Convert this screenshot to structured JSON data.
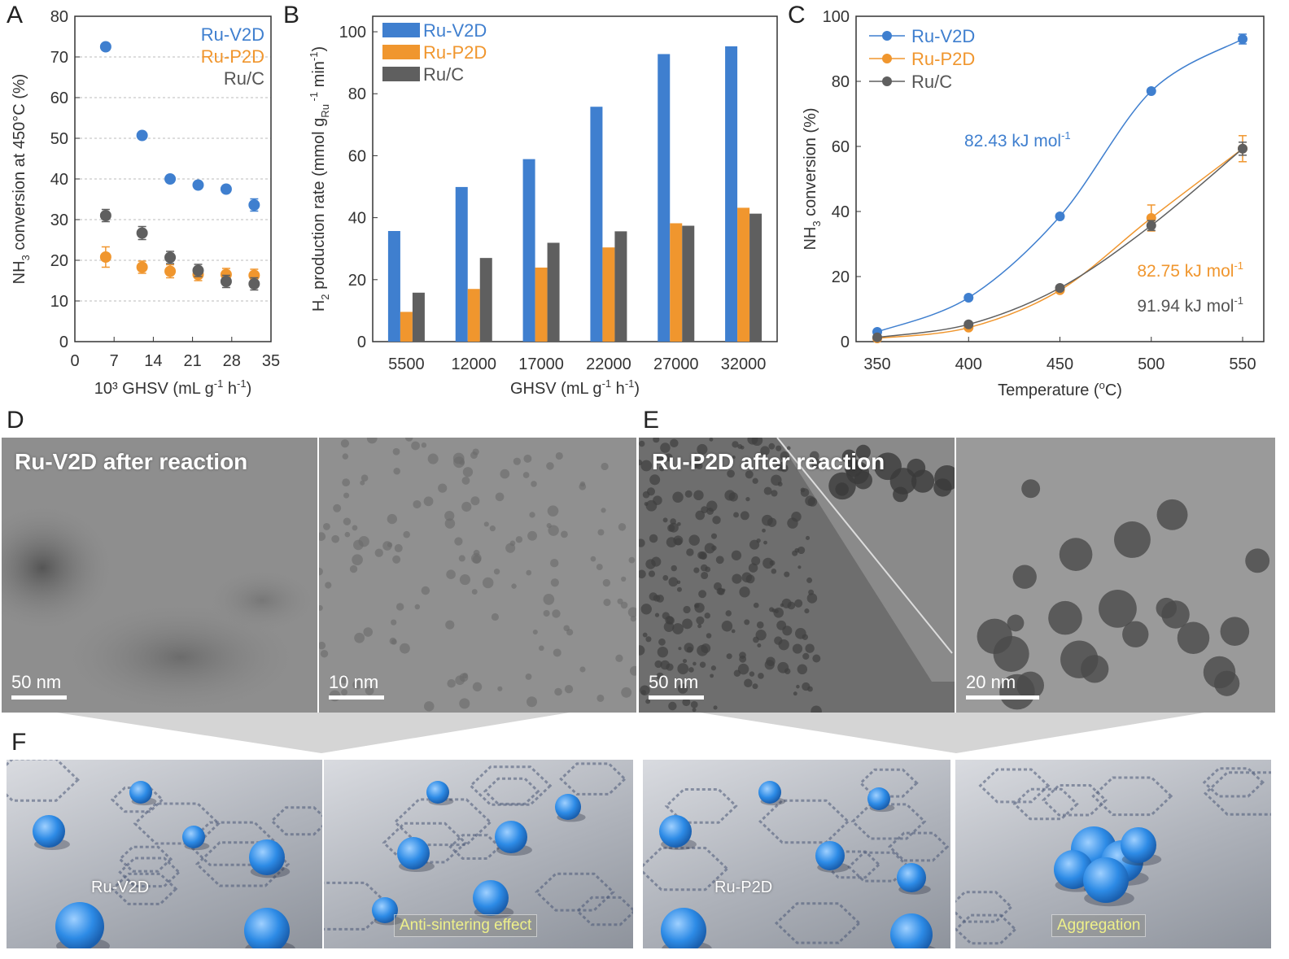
{
  "panels": {
    "A": "A",
    "B": "B",
    "C": "C",
    "D": "D",
    "E": "E",
    "F": "F"
  },
  "colors": {
    "ruv2d": "#3f7fcf",
    "rup2d": "#f0962e",
    "ruc": "#5f5f5f"
  },
  "chart_data": [
    {
      "type": "scatter",
      "ylabel_main": "NH",
      "ylabel_sub": "3",
      "ylabel_rest": " conversion at 450°C (%)",
      "xlabel_main": "10³ GHSV (mL g",
      "xlabel_sup1": "-1",
      "xlabel_mid": " h",
      "xlabel_sup2": "-1",
      "xlabel_end": ")",
      "xlim": [
        0,
        35
      ],
      "ylim": [
        0,
        80
      ],
      "xticks": [
        "0",
        "7",
        "14",
        "21",
        "28",
        "35"
      ],
      "yticks": [
        "0",
        "10",
        "20",
        "30",
        "40",
        "50",
        "60",
        "70",
        "80"
      ],
      "series": [
        {
          "name": "Ru-V2D",
          "x": [
            5.5,
            12,
            17,
            22,
            27,
            32
          ],
          "y": [
            72.5,
            50.7,
            40,
            38.5,
            37.5,
            33.6
          ],
          "err": [
            0,
            0,
            0,
            0,
            0,
            1.5
          ]
        },
        {
          "name": "Ru-P2D",
          "x": [
            5.5,
            12,
            17,
            22,
            27,
            32
          ],
          "y": [
            20.8,
            18.3,
            17.3,
            16.5,
            16.5,
            16.3
          ],
          "err": [
            2.5,
            1.5,
            1.6,
            1.5,
            1.5,
            1.5
          ]
        },
        {
          "name": "Ru/C",
          "x": [
            5.5,
            12,
            17,
            22,
            27,
            32
          ],
          "y": [
            31,
            26.7,
            20.7,
            17.5,
            14.8,
            14.2
          ],
          "err": [
            1.5,
            1.6,
            1.5,
            1.5,
            1.5,
            1.5
          ]
        }
      ]
    },
    {
      "type": "bar",
      "ylabel_main": "H",
      "ylabel_sub": "2",
      "ylabel_rest": " production rate (mmol g",
      "ylabel_sub2": "Ru",
      "ylabel_sup": " -1",
      "ylabel_end": " min",
      "ylabel_sup2": "-1",
      "ylabel_close": ")",
      "xlabel_main": "GHSV (mL g",
      "xlabel_sup1": "-1",
      "xlabel_mid": " h",
      "xlabel_sup2": "-1",
      "xlabel_end": ")",
      "ylim": [
        0,
        105
      ],
      "yticks": [
        "0",
        "20",
        "40",
        "60",
        "80",
        "100"
      ],
      "categories": [
        "5500",
        "12000",
        "17000",
        "22000",
        "27000",
        "32000"
      ],
      "series": [
        {
          "name": "Ru-V2D",
          "values": [
            35.7,
            49.9,
            58.9,
            75.8,
            92.8,
            95.3
          ]
        },
        {
          "name": "Ru-P2D",
          "values": [
            9.6,
            17,
            23.9,
            30.4,
            38.2,
            43.2
          ]
        },
        {
          "name": "Ru/C",
          "values": [
            15.8,
            27,
            31.9,
            35.6,
            37.4,
            41.3
          ]
        }
      ]
    },
    {
      "type": "line",
      "ylabel_main": "NH",
      "ylabel_sub": "3",
      "ylabel_rest": " conversion (%)",
      "xlabel_main": "Temperature (",
      "xlabel_sup": "o",
      "xlabel_end": "C)",
      "xlim": [
        350,
        550
      ],
      "ylim": [
        0,
        100
      ],
      "xticks": [
        "350",
        "400",
        "450",
        "500",
        "550"
      ],
      "yticks": [
        "0",
        "20",
        "40",
        "60",
        "80",
        "100"
      ],
      "series": [
        {
          "name": "Ru-V2D",
          "x": [
            350,
            400,
            450,
            500,
            550
          ],
          "y": [
            3,
            13.5,
            38.5,
            77,
            93
          ],
          "err": [
            0,
            0,
            0,
            0,
            1.5
          ]
        },
        {
          "name": "Ru-P2D",
          "x": [
            350,
            400,
            450,
            500,
            550
          ],
          "y": [
            1,
            4.3,
            15.8,
            38,
            59.3
          ],
          "err": [
            0,
            0,
            0,
            4,
            4
          ]
        },
        {
          "name": "Ru/C",
          "x": [
            350,
            400,
            450,
            500,
            550
          ],
          "y": [
            1.3,
            5.3,
            16.5,
            35.7,
            59.3
          ],
          "err": [
            0,
            0,
            0,
            1.5,
            2
          ]
        }
      ],
      "annotations": [
        {
          "text": "82.43 kJ mol",
          "sup": "-1",
          "series": 0
        },
        {
          "text": "82.75 kJ mol",
          "sup": "-1",
          "series": 1
        },
        {
          "text": "91.94 kJ mol",
          "sup": "-1",
          "series": 2
        }
      ]
    }
  ],
  "tem": [
    {
      "caption": "Ru-V2D after reaction",
      "scale": "50 nm"
    },
    {
      "caption": "",
      "scale": "10 nm"
    },
    {
      "caption": "Ru-P2D after reaction",
      "scale": "50 nm"
    },
    {
      "caption": "",
      "scale": "20 nm"
    }
  ],
  "illustrations": [
    {
      "label": "Ru-V2D",
      "effect": ""
    },
    {
      "label": "",
      "effect": "Anti-sintering effect"
    },
    {
      "label": "Ru-P2D",
      "effect": ""
    },
    {
      "label": "",
      "effect": "Aggregation"
    }
  ]
}
